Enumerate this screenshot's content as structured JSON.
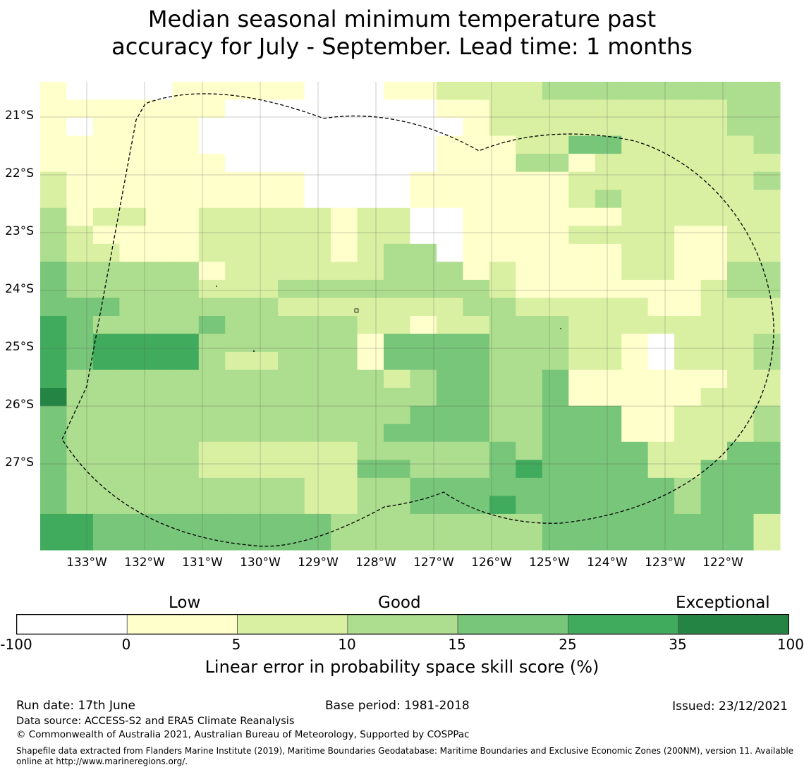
{
  "title": {
    "line1": "Median seasonal minimum temperature past",
    "line2": "accuracy for July - September. Lead time: 1 months"
  },
  "map": {
    "lon_labels": [
      "133°W",
      "132°W",
      "131°W",
      "130°W",
      "129°W",
      "128°W",
      "127°W",
      "126°W",
      "125°W",
      "124°W",
      "123°W",
      "122°W"
    ],
    "lat_labels": [
      "21°S",
      "22°S",
      "23°S",
      "24°S",
      "25°S",
      "26°S",
      "27°S"
    ],
    "grid_lines": true,
    "colors": [
      "#ffffff",
      "#ffffcc",
      "#d9f0a3",
      "#addd8e",
      "#78c679",
      "#41ab5d",
      "#238443"
    ],
    "cells": [
      "1000011111000112222333333333",
      "1111111000000001122222222233",
      "1011110000000000122222222233",
      "1111110000000001112244222223",
      "1111111000000001113312222222",
      "2111111111000011111122222223",
      "2111111111000011111123222222",
      "3122112222212200111111222222",
      "3211112222212200111122221122",
      "3221112222212330111111221122",
      "4333331222222333121111221133",
      "4333332223333333321111111233",
      "4443333332222222332222211222",
      "5433334333332212233322222222",
      "5455553333331444433322102223",
      "5455553223331444433322102223",
      "5333333333333234433411111122",
      "6333333333333334433411111222",
      "4333333333333344433444112223",
      "4333333333333444433444112223",
      "4333332222223333343444422244",
      "4333332222224433345444422444",
      "4333333333223344444444443444",
      "4333333333223344454444443444",
      "5544444444433333333444444442",
      "5544444444433333333444444442"
    ]
  },
  "legend": {
    "categories": [
      "Low",
      "Good",
      "Exceptional"
    ],
    "ticks": [
      "-100",
      "0",
      "5",
      "10",
      "15",
      "25",
      "35",
      "100"
    ],
    "label": "Linear error in probability space skill score (%)"
  },
  "footer": {
    "run_date": "Run date: 17th June",
    "base_period": "Base period: 1981-2018",
    "issued": "Issued: 23/12/2021",
    "data_source": "Data source: ACCESS-S2 and ERA5 Climate Reanalysis",
    "copyright": "© Commonwealth of Australia 2021, Australian Bureau of Meteorology, Supported by COSPPac",
    "shapefile": "Shapefile data extracted from Flanders Marine Institute (2019), Maritime Boundaries Geodatabase: Maritime Boundaries and Exclusive Economic Zones (200NM), version 11. Available online at http://www.marineregions.org/."
  }
}
